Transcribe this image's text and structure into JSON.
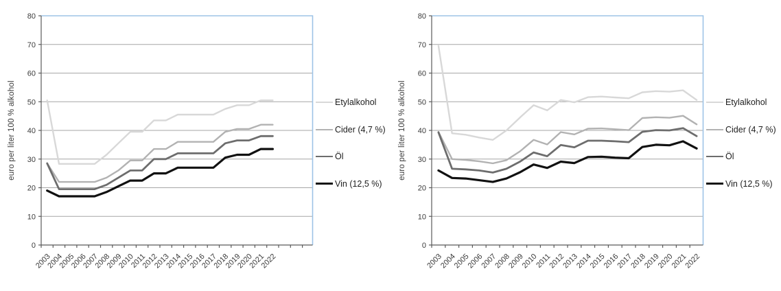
{
  "style": {
    "background": "#ffffff",
    "plot_border_color": "#9dc3e6",
    "gridline_color": "#a6a6a6",
    "axis_color": "#595959",
    "tick_label_color": "#3a3a3a"
  },
  "chart_data": [
    {
      "type": "line",
      "title": "",
      "xlabel": "",
      "ylabel": "euro per liter 100 % alkohol",
      "ylim": [
        0,
        80
      ],
      "ytick_step": 10,
      "grid": true,
      "legend_position": "right",
      "x": [
        "2003",
        "2004",
        "2005",
        "2006",
        "2007",
        "2008",
        "2009",
        "2010",
        "2011",
        "2012",
        "2013",
        "2014",
        "2015",
        "2016",
        "2017",
        "2018",
        "2019",
        "2020",
        "2021",
        "2022"
      ],
      "series": [
        {
          "name": "Etylalkohol",
          "color": "#d8d8d8",
          "line_width": 2.4,
          "values": [
            50.5,
            28.3,
            28.3,
            28.3,
            28.3,
            31.5,
            35.5,
            39.5,
            39.5,
            43.5,
            43.5,
            45.5,
            45.5,
            45.5,
            45.5,
            47.5,
            48.8,
            48.8,
            50.5,
            50.5
          ]
        },
        {
          "name": "Cider (4,7 %)",
          "color": "#b2b2b2",
          "line_width": 2.4,
          "values": [
            28.5,
            22,
            22,
            22,
            22,
            23.5,
            26,
            29.5,
            29.5,
            33.5,
            33.5,
            36,
            36,
            36,
            36,
            39.5,
            40.5,
            40.5,
            42,
            42
          ]
        },
        {
          "name": "Öl",
          "color": "#6d6d6d",
          "line_width": 2.8,
          "values": [
            28.5,
            19.5,
            19.5,
            19.5,
            19.5,
            21,
            23.5,
            26,
            26,
            30,
            30,
            32,
            32,
            32,
            32,
            35.5,
            36.5,
            36.5,
            38,
            38
          ]
        },
        {
          "name": "Vin (12,5 %)",
          "color": "#111111",
          "line_width": 3.2,
          "values": [
            19,
            17,
            17,
            17,
            17,
            18.5,
            20.5,
            22.5,
            22.5,
            25,
            25,
            27,
            27,
            27,
            27,
            30.5,
            31.5,
            31.5,
            33.5,
            33.5
          ]
        }
      ]
    },
    {
      "type": "line",
      "title": "",
      "xlabel": "",
      "ylabel": "euro per liter 100 % alkohol",
      "ylim": [
        0,
        80
      ],
      "ytick_step": 10,
      "grid": true,
      "legend_position": "right",
      "x": [
        "2003",
        "2004",
        "2005",
        "2006",
        "2007",
        "2008",
        "2009",
        "2010",
        "2011",
        "2012",
        "2013",
        "2014",
        "2015",
        "2016",
        "2017",
        "2018",
        "2019",
        "2020",
        "2021",
        "2022"
      ],
      "series": [
        {
          "name": "Etylalkohol",
          "color": "#d8d8d8",
          "line_width": 2.4,
          "values": [
            69.5,
            39,
            38.5,
            37.5,
            36.7,
            40,
            44.5,
            48.8,
            47,
            50.6,
            49.8,
            51.6,
            51.8,
            51.5,
            51.2,
            53.3,
            53.7,
            53.5,
            54,
            50.6
          ]
        },
        {
          "name": "Cider (4,7 %)",
          "color": "#b2b2b2",
          "line_width": 2.4,
          "values": [
            39.5,
            30,
            29.7,
            29.2,
            28.5,
            29.6,
            32.7,
            36.7,
            35.1,
            39.4,
            38.6,
            40.6,
            40.7,
            40.4,
            40.1,
            44.3,
            44.6,
            44.4,
            45.1,
            42.1
          ]
        },
        {
          "name": "Öl",
          "color": "#6d6d6d",
          "line_width": 2.8,
          "values": [
            39.3,
            26.6,
            26.4,
            26,
            25.3,
            26.6,
            29.1,
            32.3,
            31,
            34.9,
            34.1,
            36.4,
            36.4,
            36.2,
            35.9,
            39.5,
            40.1,
            40,
            40.8,
            38
          ]
        },
        {
          "name": "Vin (12,5 %)",
          "color": "#111111",
          "line_width": 3.2,
          "values": [
            26,
            23.4,
            23.2,
            22.6,
            22,
            23.2,
            25.4,
            28.1,
            26.9,
            29.1,
            28.6,
            30.7,
            30.8,
            30.5,
            30.3,
            34.2,
            35,
            34.8,
            36.2,
            33.7
          ]
        }
      ]
    }
  ]
}
